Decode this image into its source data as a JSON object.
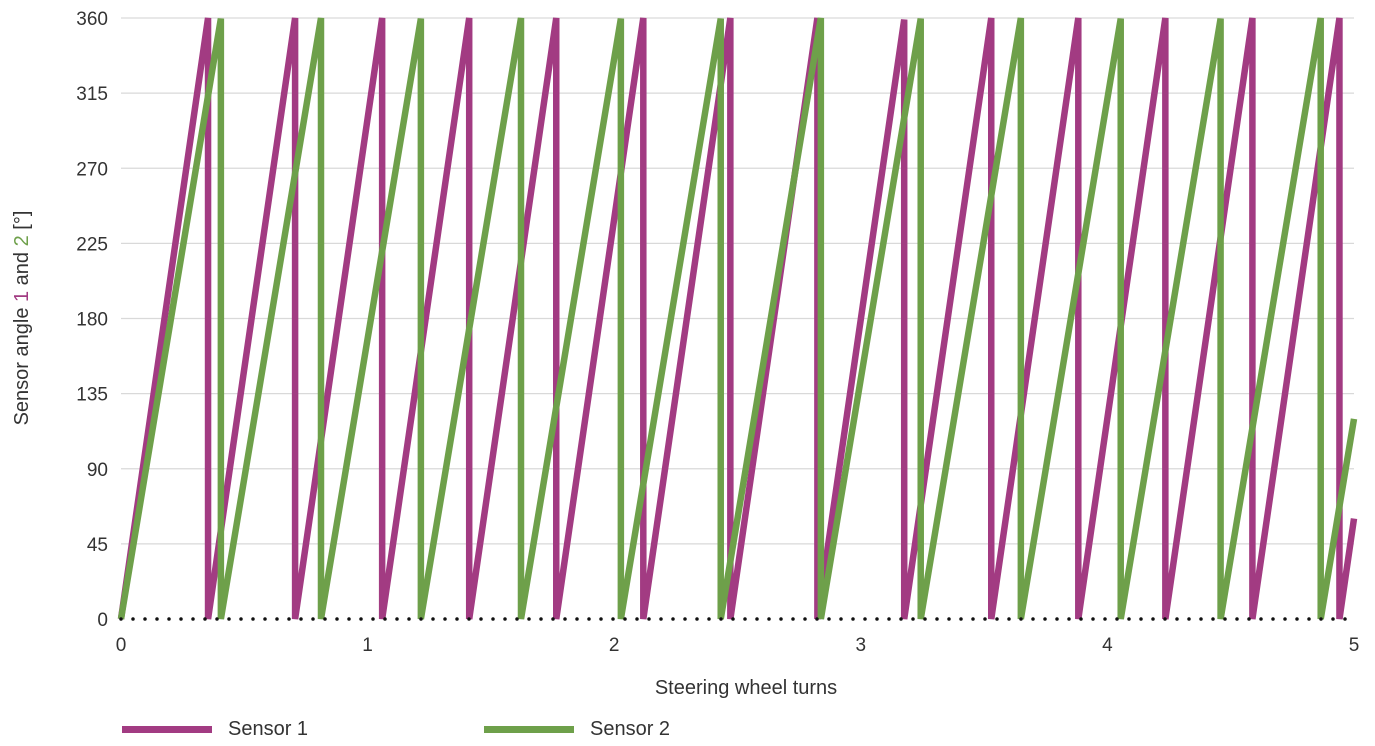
{
  "chart_data": {
    "type": "line",
    "title": "",
    "xlabel": "Steering wheel turns",
    "ylabel_parts": {
      "prefix": "Sensor angle ",
      "s1": "1",
      "mid": " and ",
      "s2": "2",
      "suffix": " [°]"
    },
    "xlim": [
      0,
      5
    ],
    "ylim": [
      0,
      360
    ],
    "x_ticks": [
      0,
      1,
      2,
      3,
      4,
      5
    ],
    "y_ticks": [
      0,
      45,
      90,
      135,
      180,
      225,
      270,
      315,
      360
    ],
    "grid": "horizontal",
    "legend_position": "bottom-left",
    "series": [
      {
        "name": "Sensor 1",
        "color": "#a23b82",
        "degrees_per_turn": 1020,
        "reset_turns": [
          0.353,
          0.706,
          1.059,
          1.412,
          1.765,
          2.118,
          2.471,
          2.824,
          3.176,
          3.529,
          3.882,
          4.235,
          4.588,
          4.941
        ]
      },
      {
        "name": "Sensor 2",
        "color": "#6ea04a",
        "degrees_per_turn": 888,
        "reset_turns": [
          0.405,
          0.811,
          1.216,
          1.622,
          2.027,
          2.432,
          2.838,
          3.243,
          3.649,
          4.054,
          4.459,
          4.865
        ]
      }
    ]
  }
}
